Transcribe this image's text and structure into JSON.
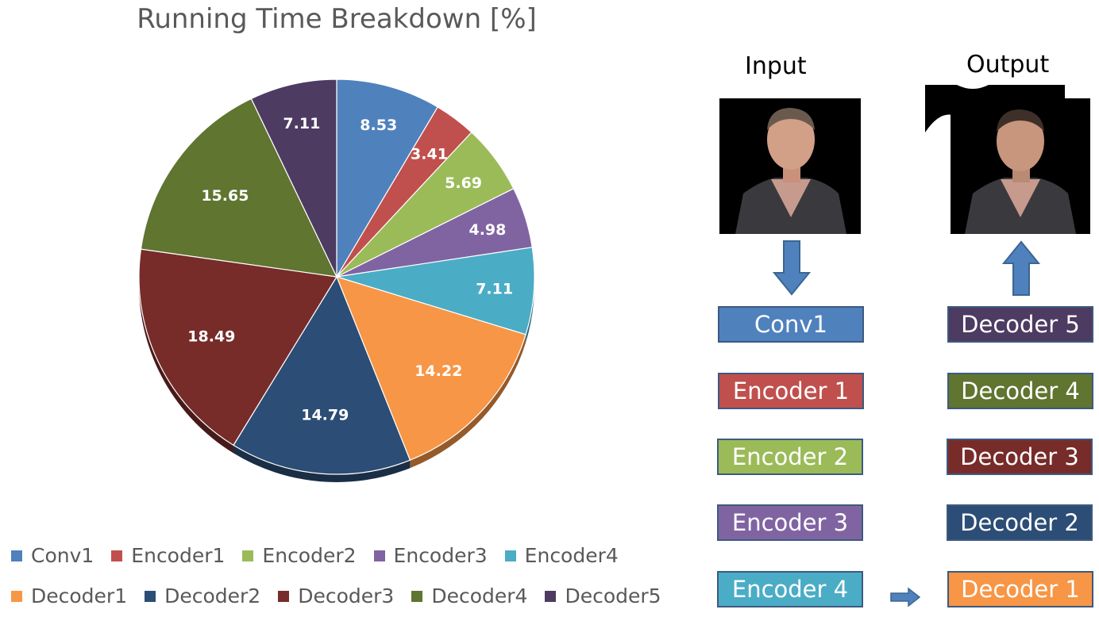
{
  "chart_data": {
    "type": "pie",
    "title": "Running Time Breakdown [%]",
    "slices": [
      {
        "label": "Conv1",
        "value": 8.53,
        "color": "#4f81bd"
      },
      {
        "label": "Encoder1",
        "value": 3.41,
        "color": "#c0504d"
      },
      {
        "label": "Encoder2",
        "value": 5.69,
        "color": "#9bbb59"
      },
      {
        "label": "Encoder3",
        "value": 4.98,
        "color": "#8064a2"
      },
      {
        "label": "Encoder4",
        "value": 7.11,
        "color": "#4bacc6"
      },
      {
        "label": "Decoder1",
        "value": 14.22,
        "color": "#f79646"
      },
      {
        "label": "Decoder2",
        "value": 14.79,
        "color": "#2c4d75"
      },
      {
        "label": "Decoder3",
        "value": 18.49,
        "color": "#772c2a"
      },
      {
        "label": "Decoder4",
        "value": 15.65,
        "color": "#5f7530"
      },
      {
        "label": "Decoder5",
        "value": 7.11,
        "color": "#4d3b62"
      }
    ],
    "legend_position": "bottom"
  },
  "diagram": {
    "input_label": "Input",
    "output_label": "Output",
    "encoder_column": [
      {
        "label": "Conv1",
        "color": "#4f81bd"
      },
      {
        "label": "Encoder 1",
        "color": "#c0504d"
      },
      {
        "label": "Encoder 2",
        "color": "#9bbb59"
      },
      {
        "label": "Encoder 3",
        "color": "#8064a2"
      },
      {
        "label": "Encoder 4",
        "color": "#4bacc6"
      }
    ],
    "decoder_column": [
      {
        "label": "Decoder 5",
        "color": "#4d3b62"
      },
      {
        "label": "Decoder 4",
        "color": "#5f7530"
      },
      {
        "label": "Decoder 3",
        "color": "#772c2a"
      },
      {
        "label": "Decoder 2",
        "color": "#2c4d75"
      },
      {
        "label": "Decoder 1",
        "color": "#f79646"
      }
    ],
    "arrow_color": "#4f81bd"
  }
}
